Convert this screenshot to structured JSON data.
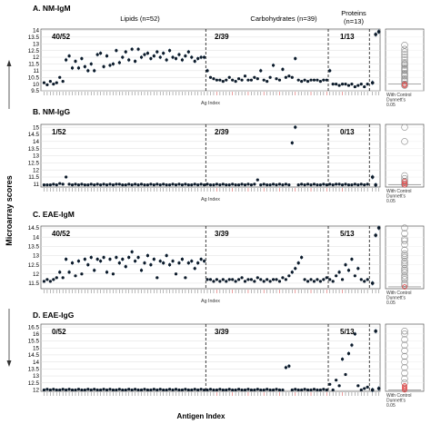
{
  "chart_data": {
    "type": "scatter",
    "ylabel": "Microarray scores",
    "xlabel": "Antigen Index",
    "groups": [
      {
        "label": "Lipids (n=52)",
        "n": 52
      },
      {
        "label": "Carbohydrates (n=39)",
        "n": 39
      },
      {
        "label": "Proteins\n(n=13)",
        "n": 13
      }
    ],
    "comparison_label": "With Control\nDunnett's\n0.05",
    "panels": [
      {
        "title": "A.  NM-IgM",
        "subtitle": "Ag Index",
        "yticks": [
          9.5,
          10,
          10.5,
          11,
          11.5,
          12,
          12.5,
          13,
          13.5,
          14
        ],
        "ylim": [
          9.5,
          14.1
        ],
        "fractions": [
          "40/52",
          "2/39",
          "1/13"
        ],
        "values": [
          10.1,
          9.95,
          10.2,
          10.0,
          10.1,
          10.5,
          10.2,
          11.8,
          12.1,
          11.2,
          11.7,
          11.2,
          11.9,
          11.3,
          11.0,
          11.5,
          11.0,
          12.2,
          12.3,
          11.3,
          12.1,
          11.4,
          11.5,
          12.5,
          11.6,
          12.0,
          12.4,
          11.8,
          12.6,
          11.7,
          12.6,
          12.0,
          12.2,
          12.3,
          11.9,
          12.1,
          12.4,
          12.0,
          12.3,
          11.8,
          12.5,
          12.0,
          11.9,
          12.2,
          11.8,
          12.1,
          12.4,
          12.0,
          11.7,
          11.9,
          12.0,
          12.0,
          11.0,
          10.5,
          10.4,
          10.3,
          10.3,
          10.2,
          10.3,
          10.5,
          10.3,
          10.2,
          10.4,
          10.3,
          10.6,
          10.3,
          10.3,
          10.5,
          10.4,
          11.0,
          10.3,
          10.2,
          10.5,
          11.4,
          10.4,
          10.3,
          11.1,
          10.5,
          10.6,
          10.5,
          11.9,
          10.3,
          10.2,
          10.3,
          10.2,
          10.3,
          10.3,
          10.3,
          10.2,
          10.3,
          10.3,
          11.0,
          10.0,
          10.0,
          9.9,
          10.0,
          10.0,
          9.9,
          10.0,
          9.8,
          9.9,
          10.0,
          9.8,
          10.0
        ],
        "controls": [
          10.1,
          13.7,
          13.9
        ],
        "comparison": [
          12.9,
          12.6,
          12.4,
          12.2,
          12.0,
          11.8,
          11.6,
          11.4,
          11.2,
          11.0,
          10.8,
          10.6,
          10.4,
          10.2,
          10.0,
          9.9,
          11.5,
          11.1,
          10.7,
          10.3
        ],
        "comparison_red": [
          10.0,
          9.9
        ]
      },
      {
        "title": "B.  NM-IgG",
        "subtitle": "Ag Index",
        "yticks": [
          11,
          11.5,
          12,
          12.5,
          13,
          13.5,
          14,
          14.5,
          15
        ],
        "ylim": [
          10.8,
          15.2
        ],
        "fractions": [
          "1/52",
          "2/39",
          "0/13"
        ],
        "values": [
          10.95,
          10.95,
          10.95,
          11.0,
          10.95,
          11.05,
          11.0,
          11.5,
          11.0,
          10.95,
          11.0,
          10.95,
          11.0,
          10.95,
          10.95,
          11.0,
          10.95,
          11.0,
          10.95,
          11.0,
          10.95,
          11.0,
          10.95,
          11.0,
          11.0,
          10.95,
          10.95,
          11.0,
          10.95,
          11.0,
          10.95,
          11.0,
          10.95,
          10.95,
          11.0,
          10.95,
          11.0,
          10.95,
          11.0,
          10.95,
          10.95,
          11.0,
          10.95,
          11.0,
          10.95,
          11.0,
          10.95,
          10.95,
          11.0,
          10.95,
          11.0,
          10.95,
          11.0,
          10.95,
          10.95,
          11.0,
          10.95,
          11.0,
          10.95,
          10.95,
          11.0,
          10.95,
          10.95,
          11.0,
          10.95,
          11.0,
          10.95,
          11.0,
          11.3,
          10.95,
          11.0,
          10.95,
          10.95,
          11.0,
          10.95,
          11.0,
          10.95,
          11.0,
          10.95,
          13.9,
          15.0,
          10.95,
          11.0,
          10.95,
          11.0,
          10.95,
          11.0,
          10.95,
          10.95,
          11.0,
          10.95,
          11.0,
          10.95,
          11.0,
          11.0,
          10.95,
          11.0,
          10.95,
          10.95,
          11.0,
          10.95,
          11.0,
          10.95,
          11.0
        ],
        "controls": [
          11.5,
          10.95
        ],
        "comparison": [
          15.0,
          14.0,
          11.6,
          11.4,
          11.2,
          11.0,
          11.0
        ],
        "comparison_red": [
          10.95,
          11.05,
          11.2
        ]
      },
      {
        "title": "C.  EAE-IgM",
        "subtitle": "Ag Index",
        "yticks": [
          11.5,
          12,
          12.5,
          13,
          13.5,
          14,
          14.5
        ],
        "ylim": [
          11.2,
          14.6
        ],
        "fractions": [
          "40/52",
          "3/39",
          "5/13"
        ],
        "values": [
          11.6,
          11.7,
          11.6,
          11.7,
          11.8,
          12.1,
          11.8,
          12.8,
          12.1,
          12.6,
          11.9,
          12.7,
          12.0,
          12.8,
          12.5,
          12.9,
          12.2,
          12.8,
          12.7,
          12.9,
          12.1,
          12.8,
          12.0,
          12.9,
          12.6,
          12.8,
          12.4,
          12.9,
          13.2,
          12.7,
          12.9,
          12.2,
          12.6,
          13.0,
          12.5,
          12.8,
          11.8,
          12.7,
          12.6,
          13.0,
          12.5,
          12.7,
          12.0,
          12.6,
          12.8,
          11.8,
          12.6,
          12.7,
          12.3,
          12.6,
          12.8,
          12.7,
          11.7,
          11.7,
          11.6,
          11.7,
          11.6,
          11.7,
          11.6,
          11.7,
          11.7,
          11.6,
          11.7,
          11.8,
          11.6,
          11.7,
          11.7,
          11.6,
          11.8,
          11.7,
          11.6,
          11.7,
          11.6,
          11.7,
          11.7,
          11.6,
          11.8,
          11.7,
          11.9,
          12.1,
          12.3,
          12.6,
          12.9,
          11.7,
          11.6,
          11.7,
          11.6,
          11.7,
          11.6,
          11.7,
          11.8,
          11.7,
          11.6,
          11.9,
          12.1,
          11.7,
          12.5,
          12.2,
          12.8,
          11.9,
          12.3,
          11.7,
          11.6,
          11.7
        ],
        "controls": [
          11.5,
          14.1,
          14.5
        ],
        "comparison": [
          14.5,
          14.2,
          13.9,
          13.6,
          13.3,
          13.1,
          12.9,
          12.7,
          12.5,
          12.3,
          12.1,
          11.9,
          11.7,
          11.5,
          13.8,
          13.0,
          12.6,
          12.2,
          11.8,
          11.4
        ],
        "comparison_red": [
          11.3
        ]
      },
      {
        "title": "D.  EAE-IgG",
        "subtitle": "",
        "yticks": [
          12,
          12.5,
          13,
          13.5,
          14,
          14.5,
          15,
          15.5,
          16,
          16.5
        ],
        "ylim": [
          11.9,
          16.7
        ],
        "fractions": [
          "0/52",
          "3/39",
          "5/13"
        ],
        "values": [
          12.0,
          12.05,
          12.0,
          12.05,
          12.0,
          12.0,
          12.05,
          12.0,
          12.05,
          12.0,
          12.0,
          12.05,
          12.0,
          12.0,
          12.05,
          12.0,
          12.05,
          12.0,
          12.0,
          12.05,
          12.0,
          12.05,
          12.0,
          12.0,
          12.05,
          12.0,
          12.0,
          12.05,
          12.0,
          12.05,
          12.0,
          12.0,
          12.05,
          12.0,
          12.0,
          12.05,
          12.0,
          12.05,
          12.0,
          12.0,
          12.05,
          12.0,
          12.05,
          12.0,
          12.0,
          12.05,
          12.0,
          12.0,
          12.05,
          12.0,
          12.05,
          12.0,
          12.0,
          12.05,
          12.0,
          12.0,
          12.05,
          12.0,
          12.0,
          12.05,
          12.0,
          12.0,
          12.05,
          12.0,
          12.0,
          12.05,
          12.0,
          12.0,
          12.05,
          12.0,
          12.0,
          12.05,
          12.0,
          12.0,
          12.05,
          12.0,
          12.0,
          13.6,
          13.7,
          12.0,
          12.05,
          12.0,
          12.0,
          12.05,
          12.0,
          12.0,
          12.05,
          12.0,
          12.0,
          12.05,
          12.0,
          12.4,
          12.0,
          12.7,
          12.3,
          14.2,
          13.1,
          14.6,
          15.2,
          16.0,
          12.3,
          12.0,
          12.1,
          12.2
        ],
        "controls": [
          12.0,
          16.2,
          12.1
        ],
        "comparison": [
          16.2,
          16.0,
          15.6,
          15.2,
          14.8,
          14.4,
          14.0,
          13.6,
          13.2,
          12.8,
          12.5
        ],
        "comparison_red": [
          12.0,
          12.1,
          12.2,
          12.3
        ]
      }
    ]
  }
}
